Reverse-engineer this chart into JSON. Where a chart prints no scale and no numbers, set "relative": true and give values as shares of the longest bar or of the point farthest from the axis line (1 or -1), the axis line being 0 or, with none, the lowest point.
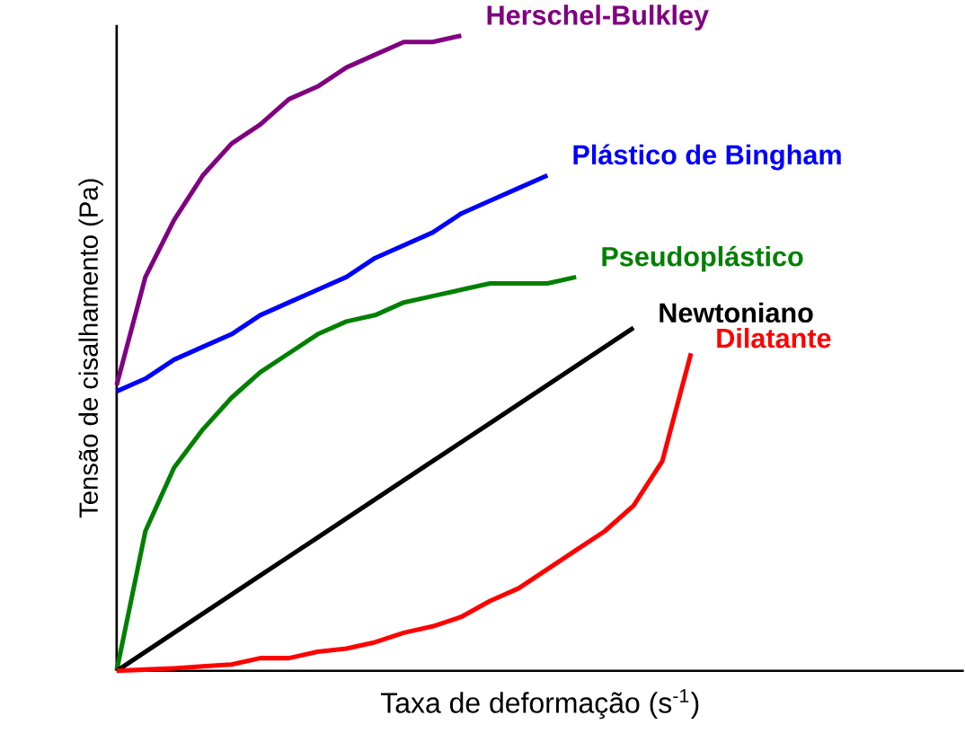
{
  "chart_data": {
    "type": "line",
    "relative": true,
    "xlabel": "Taxa de deformação (s$^{-1}$)",
    "ylabel": "Tensão de cisalhamento (Pa)",
    "marker": "none",
    "line_style": "solid",
    "categories": [
      null,
      null,
      null,
      null,
      null,
      null,
      null,
      null,
      null,
      null,
      null,
      null,
      null,
      null,
      null,
      null,
      null,
      null,
      null,
      null,
      null
    ],
    "series": [
      {
        "name": "Herschel-Bulkley",
        "color": "#800080",
        "values": [
          0.45,
          0.62,
          0.71,
          0.78,
          0.83,
          0.86,
          0.9,
          0.92,
          0.95,
          0.97,
          0.99,
          0.99,
          1.0,
          null,
          null,
          null,
          null,
          null,
          null,
          null,
          null
        ]
      },
      {
        "name": "Plástico de Bingham",
        "color": "#0000ff",
        "values": [
          0.44,
          0.46,
          0.49,
          0.51,
          0.53,
          0.56,
          0.58,
          0.6,
          0.62,
          0.65,
          0.67,
          0.69,
          0.72,
          0.74,
          0.76,
          0.78,
          null,
          null,
          null,
          null,
          null
        ]
      },
      {
        "name": "Pseudoplástico",
        "color": "#008000",
        "values": [
          0,
          0.22,
          0.32,
          0.38,
          0.43,
          0.47,
          0.5,
          0.53,
          0.55,
          0.56,
          0.58,
          0.59,
          0.6,
          0.61,
          0.61,
          0.61,
          0.62,
          null,
          null,
          null,
          null
        ]
      },
      {
        "name": "Newtoniano",
        "color": "#000000",
        "values": [
          0,
          0.03,
          0.06,
          0.09,
          0.12,
          0.15,
          0.18,
          0.21,
          0.24,
          0.27,
          0.3,
          0.33,
          0.36,
          0.39,
          0.42,
          0.45,
          0.48,
          0.51,
          0.54,
          null,
          null
        ]
      },
      {
        "name": "Dilatante",
        "color": "#ff0000",
        "values": [
          0,
          0.002,
          0.004,
          0.007,
          0.01,
          0.02,
          0.02,
          0.03,
          0.035,
          0.045,
          0.06,
          0.07,
          0.085,
          0.11,
          0.13,
          0.16,
          0.19,
          0.22,
          0.26,
          0.33,
          0.5
        ]
      }
    ]
  }
}
